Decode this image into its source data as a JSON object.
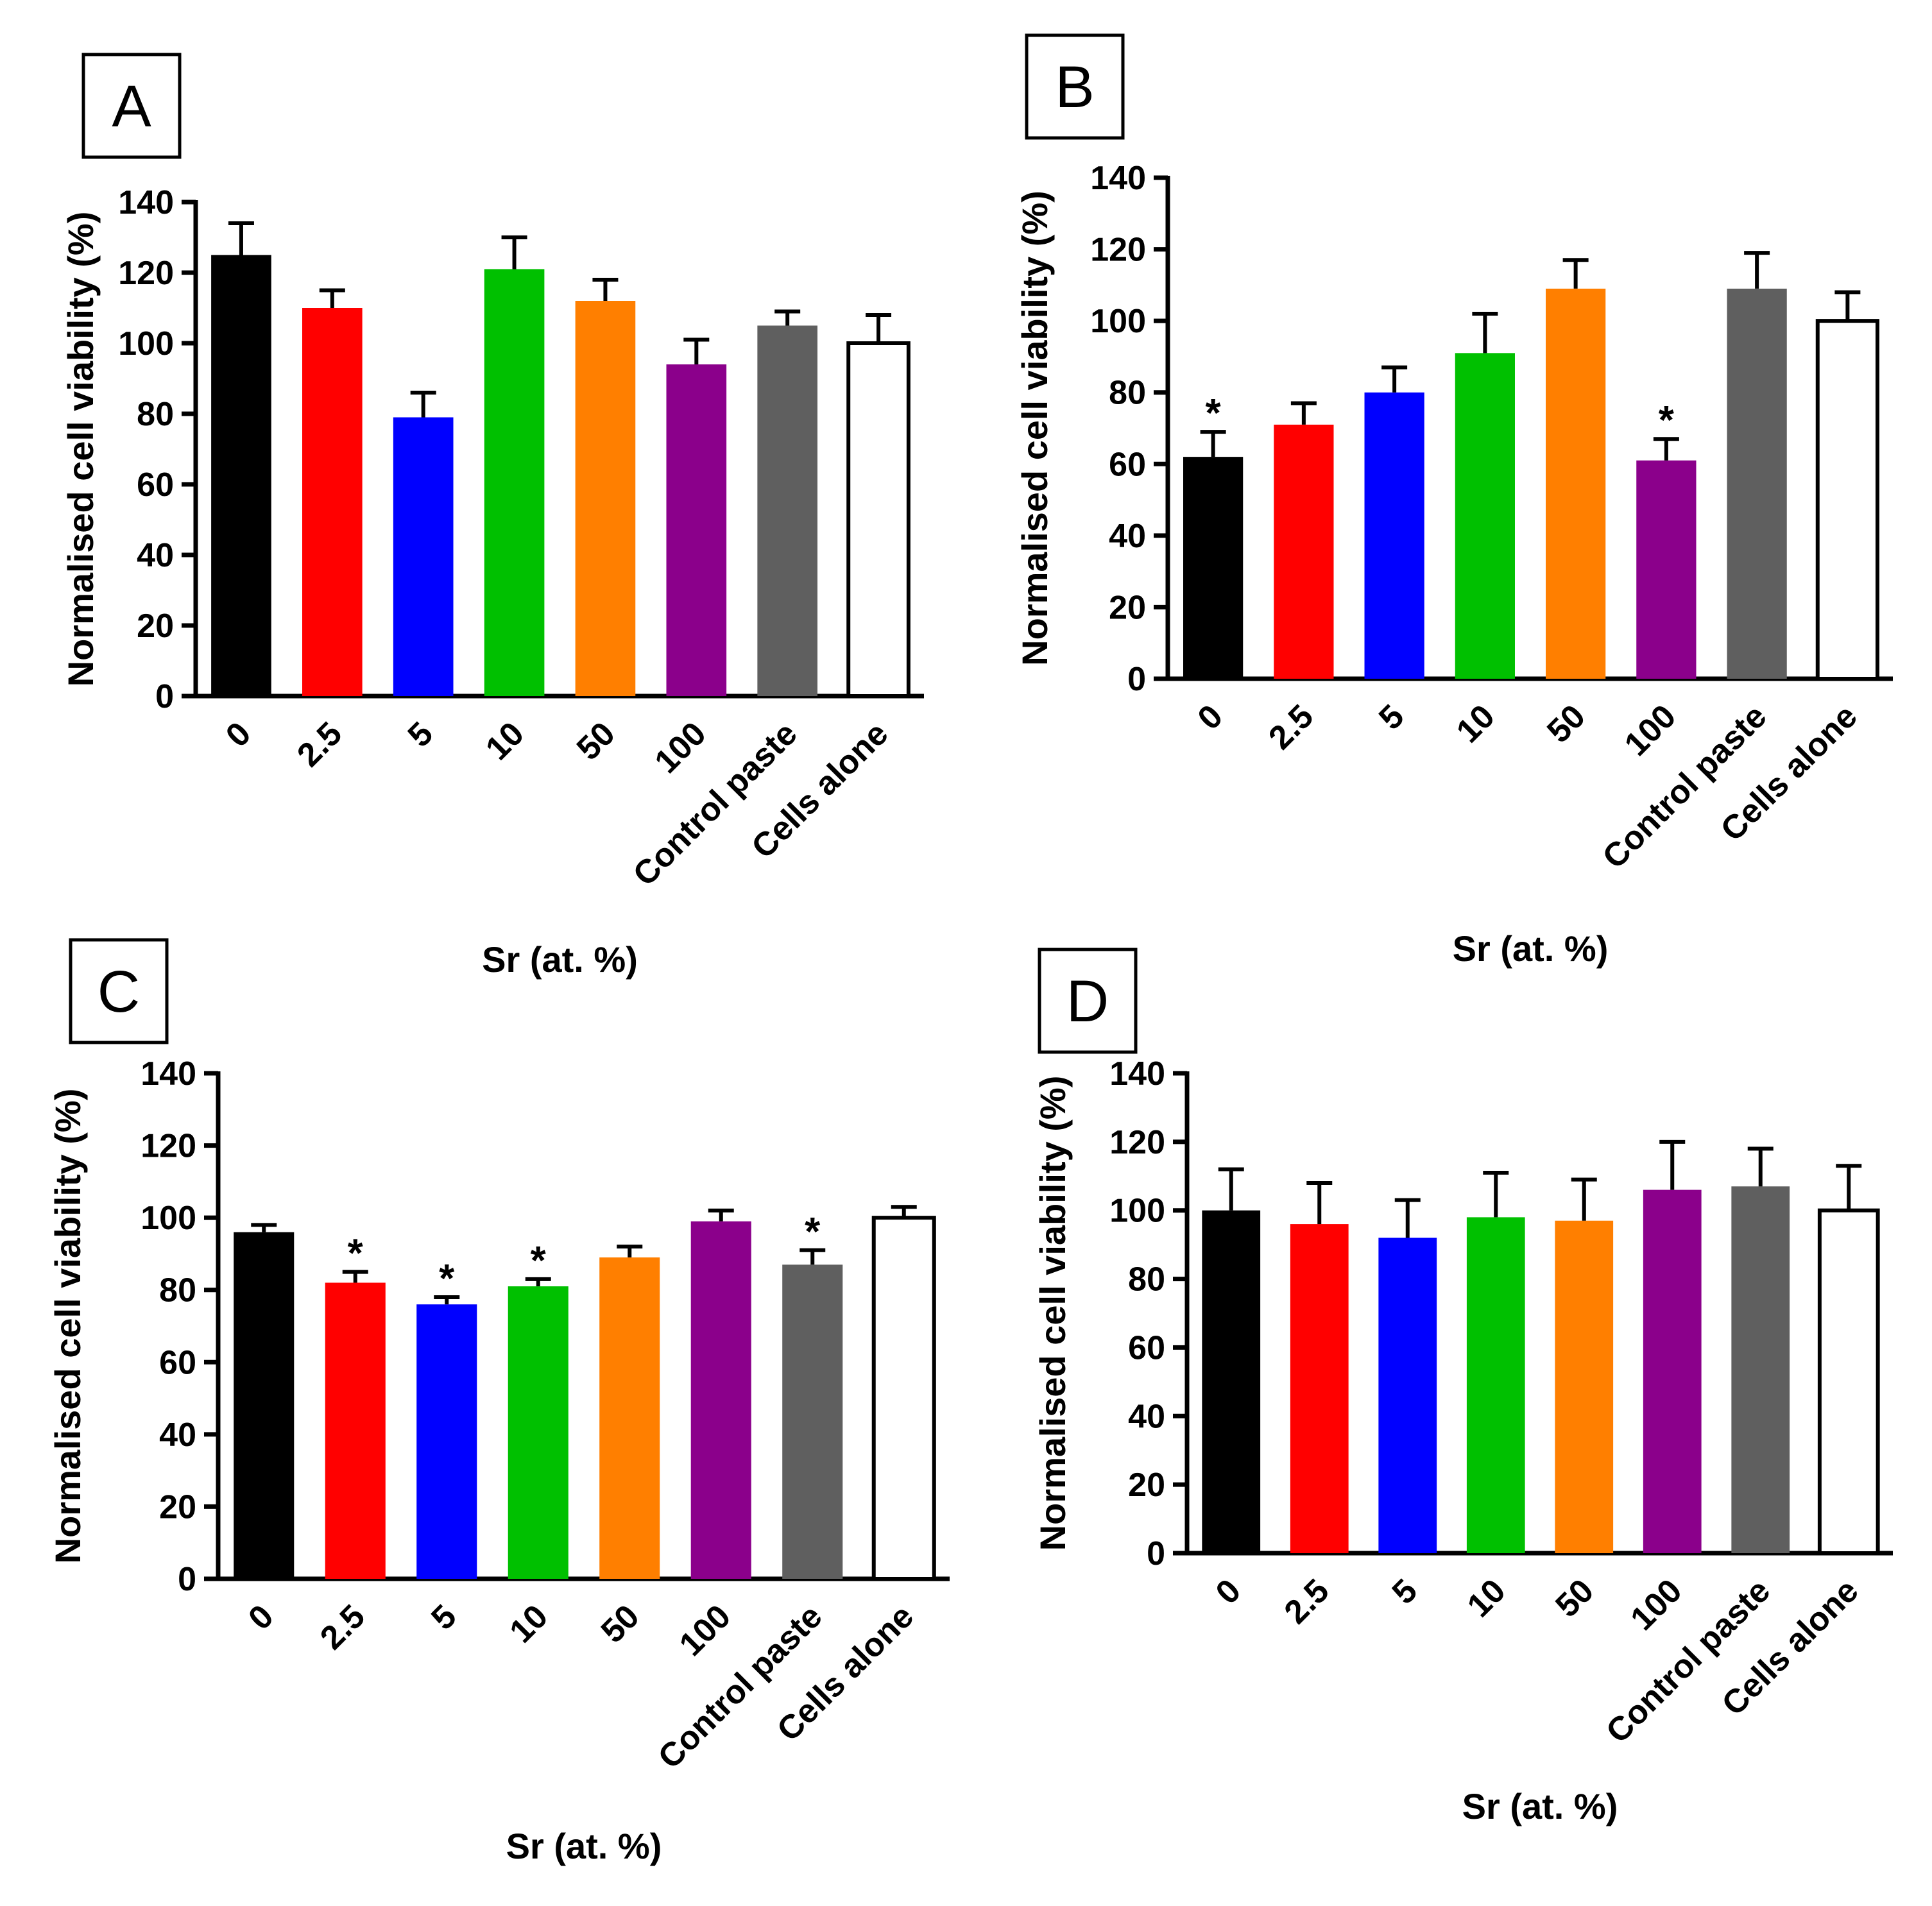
{
  "colors": {
    "0": "#000000",
    "2.5": "#ff0000",
    "5": "#0000ff",
    "10": "#00c000",
    "50": "#ff7f00",
    "100": "#8b008b",
    "Control paste": "#5f5f5f",
    "Cells alone": "#ffffff"
  },
  "chart_data": [
    {
      "panel": "A",
      "type": "bar",
      "categories": [
        "0",
        "2.5",
        "5",
        "10",
        "50",
        "100",
        "Control paste",
        "Cells alone"
      ],
      "values": [
        125,
        110,
        79,
        121,
        112,
        94,
        105,
        100
      ],
      "errors": [
        9,
        5,
        7,
        9,
        6,
        7,
        4,
        8
      ],
      "significant": [
        false,
        false,
        false,
        false,
        false,
        false,
        false,
        false
      ],
      "xlabel": "Sr (at. %)",
      "ylabel": "Normalised cell viability (%)",
      "ylim": [
        0,
        140
      ],
      "yticks": [
        0,
        20,
        40,
        60,
        80,
        100,
        120,
        140
      ]
    },
    {
      "panel": "B",
      "type": "bar",
      "categories": [
        "0",
        "2.5",
        "5",
        "10",
        "50",
        "100",
        "Control paste",
        "Cells alone"
      ],
      "values": [
        62,
        71,
        80,
        91,
        109,
        61,
        109,
        100
      ],
      "errors": [
        7,
        6,
        7,
        11,
        8,
        6,
        10,
        8
      ],
      "significant": [
        true,
        false,
        false,
        false,
        false,
        true,
        false,
        false
      ],
      "xlabel": "Sr (at. %)",
      "ylabel": "Normalised cell viability (%)",
      "ylim": [
        0,
        140
      ],
      "yticks": [
        0,
        20,
        40,
        60,
        80,
        100,
        120,
        140
      ]
    },
    {
      "panel": "C",
      "type": "bar",
      "categories": [
        "0",
        "2.5",
        "5",
        "10",
        "50",
        "100",
        "Control paste",
        "Cells alone"
      ],
      "values": [
        96,
        82,
        76,
        81,
        89,
        99,
        87,
        100
      ],
      "errors": [
        2,
        3,
        2,
        2,
        3,
        3,
        4,
        3
      ],
      "significant": [
        false,
        true,
        true,
        true,
        false,
        false,
        true,
        false
      ],
      "xlabel": "Sr (at. %)",
      "ylabel": "Normalised cell viability (%)",
      "ylim": [
        0,
        140
      ],
      "yticks": [
        0,
        20,
        40,
        60,
        80,
        100,
        120,
        140
      ]
    },
    {
      "panel": "D",
      "type": "bar",
      "categories": [
        "0",
        "2.5",
        "5",
        "10",
        "50",
        "100",
        "Control paste",
        "Cells alone"
      ],
      "values": [
        100,
        96,
        92,
        98,
        97,
        106,
        107,
        100
      ],
      "errors": [
        12,
        12,
        11,
        13,
        12,
        14,
        11,
        13
      ],
      "significant": [
        false,
        false,
        false,
        false,
        false,
        false,
        false,
        false
      ],
      "xlabel": "Sr (at. %)",
      "ylabel": "Normalised cell viability (%)",
      "ylim": [
        0,
        140
      ],
      "yticks": [
        0,
        20,
        40,
        60,
        80,
        100,
        120,
        140
      ]
    }
  ]
}
